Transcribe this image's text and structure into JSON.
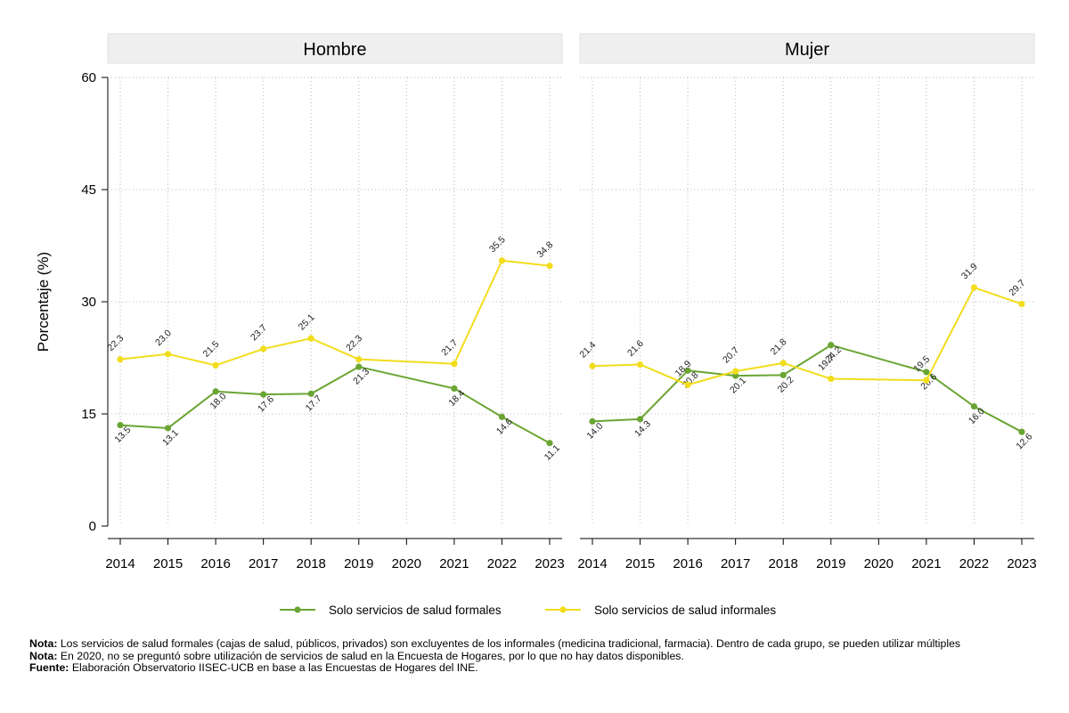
{
  "chart_data": {
    "type": "line",
    "ylabel": "Porcentaje (%)",
    "ylim": [
      0,
      60
    ],
    "yticks": [
      0,
      15,
      30,
      45,
      60
    ],
    "x": [
      "2014",
      "2015",
      "2016",
      "2017",
      "2018",
      "2019",
      "2020",
      "2021",
      "2022",
      "2023"
    ],
    "grid": true,
    "legend_position": "bottom",
    "colors": {
      "formal": "#6aa533",
      "informal": "#f2dd1d",
      "panel": "#efefef",
      "grid": "#b8b8b8"
    },
    "panels": [
      {
        "title": "Hombre",
        "series": [
          {
            "name": "Solo servicios de salud formales",
            "key": "formal",
            "values": [
              13.5,
              13.1,
              18.0,
              17.6,
              17.7,
              21.3,
              null,
              18.4,
              14.6,
              11.1
            ],
            "labels": [
              "13.5",
              "13.1",
              "18.0",
              "17.6",
              "17.7",
              "21.3",
              null,
              "18.4",
              "14.6",
              "11.1"
            ]
          },
          {
            "name": "Solo servicios de salud informales",
            "key": "informal",
            "values": [
              22.3,
              23.0,
              21.5,
              23.7,
              25.1,
              22.3,
              null,
              21.7,
              35.5,
              34.8
            ],
            "labels": [
              "22.3",
              "23.0",
              "21.5",
              "23.7",
              "25.1",
              "22.3",
              null,
              "21.7",
              "35.5",
              "34.8"
            ]
          }
        ]
      },
      {
        "title": "Mujer",
        "series": [
          {
            "name": "Solo servicios de salud formales",
            "key": "formal",
            "values": [
              14.0,
              14.3,
              20.8,
              20.1,
              20.2,
              24.2,
              null,
              20.6,
              16.0,
              12.6
            ],
            "labels": [
              "14.0",
              "14.3",
              "20.8",
              "20.1",
              "20.2",
              "24.2",
              null,
              "20.6",
              "16.0",
              "12.6"
            ]
          },
          {
            "name": "Solo servicios de salud informales",
            "key": "informal",
            "values": [
              21.4,
              21.6,
              18.9,
              20.7,
              21.8,
              19.7,
              null,
              19.5,
              31.9,
              29.7
            ],
            "labels": [
              "21.4",
              "21.6",
              "18.9",
              "20.7",
              "21.8",
              "19.7",
              null,
              "19.5",
              "31.9",
              "29.7"
            ]
          }
        ]
      }
    ],
    "legend": [
      {
        "key": "formal",
        "label": "Solo servicios de salud formales"
      },
      {
        "key": "informal",
        "label": "Solo servicios de salud informales"
      }
    ]
  },
  "notes": {
    "note1_label": "Nota:",
    "note1_text": " Los servicios de salud formales (cajas de salud, públicos, privados) son excluyentes de los informales (medicina tradicional, farmacia). Dentro de cada grupo, se pueden utilizar múltiples",
    "note2_label": "Nota:",
    "note2_text": " En 2020, no se preguntó sobre utilización de servicios de salud en la Encuesta de Hogares, por lo que no hay datos disponibles.",
    "source_label": "Fuente:",
    "source_text": " Elaboración Observatorio IISEC-UCB en base a las Encuestas de Hogares del INE."
  }
}
